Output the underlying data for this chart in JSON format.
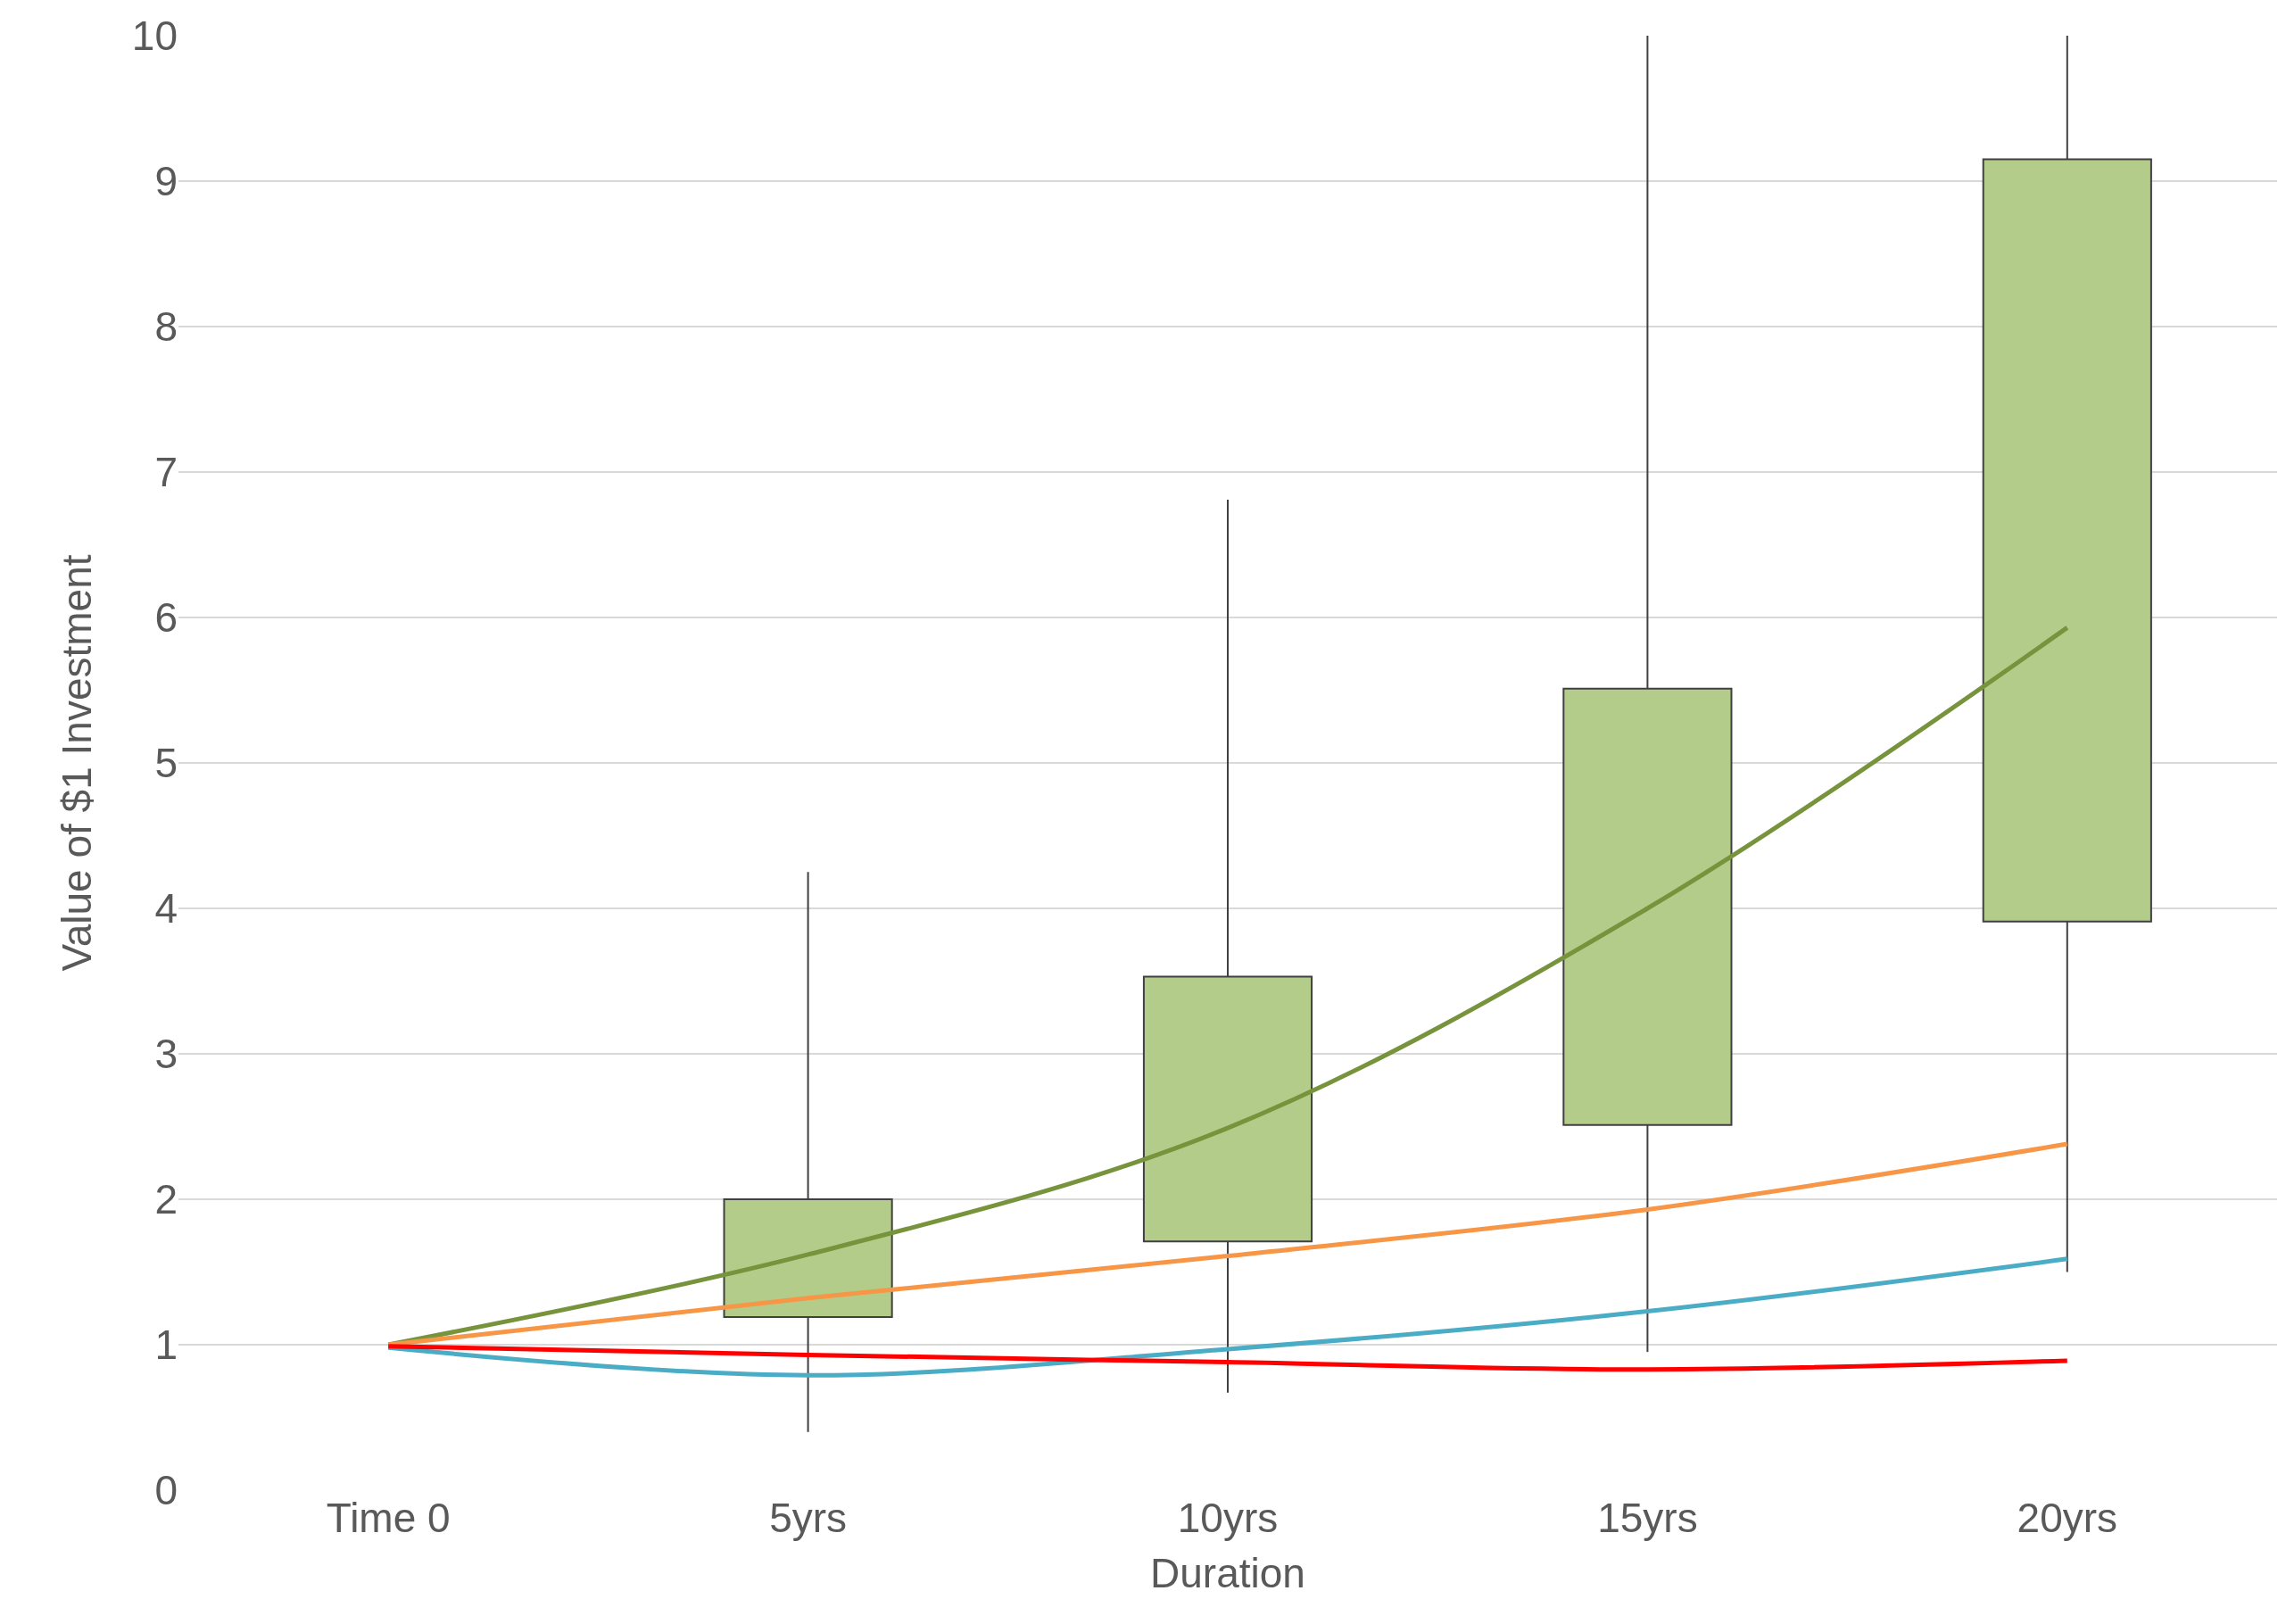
{
  "chart_data": {
    "type": "box",
    "xlabel": "Duration",
    "ylabel": "Value of $1 Investment",
    "categories": [
      "Time 0",
      "5yrs",
      "10yrs",
      "15yrs",
      "20yrs"
    ],
    "ylim": [
      0,
      10
    ],
    "yticks": [
      0,
      1,
      2,
      3,
      4,
      5,
      6,
      7,
      8,
      9,
      10
    ],
    "grid": "y",
    "series": [
      {
        "color": "#b4cc8a",
        "boxes": [
          null,
          {
            "low": 0.4,
            "q1": 1.19,
            "q3": 2.0,
            "high": 4.25
          },
          {
            "low": 0.67,
            "q1": 1.71,
            "q3": 3.53,
            "high": 6.81
          },
          {
            "low": 0.95,
            "q1": 2.51,
            "q3": 5.51,
            "high": 10
          },
          {
            "low": 1.5,
            "q1": 3.91,
            "q3": 9.15,
            "high": 10
          }
        ]
      },
      {
        "type": "line",
        "color": "#77933c",
        "values": [
          1.0,
          1.62,
          2.49,
          4.0,
          5.93
        ]
      },
      {
        "type": "line",
        "color": "#f79646",
        "values": [
          1.0,
          1.32,
          1.61,
          1.93,
          2.38
        ]
      },
      {
        "type": "line",
        "color": "#4bacc6",
        "values": [
          0.98,
          0.79,
          0.97,
          1.23,
          1.59
        ]
      },
      {
        "type": "line",
        "color": "#ff0000",
        "values": [
          0.99,
          0.93,
          0.88,
          0.83,
          0.89
        ]
      }
    ]
  }
}
